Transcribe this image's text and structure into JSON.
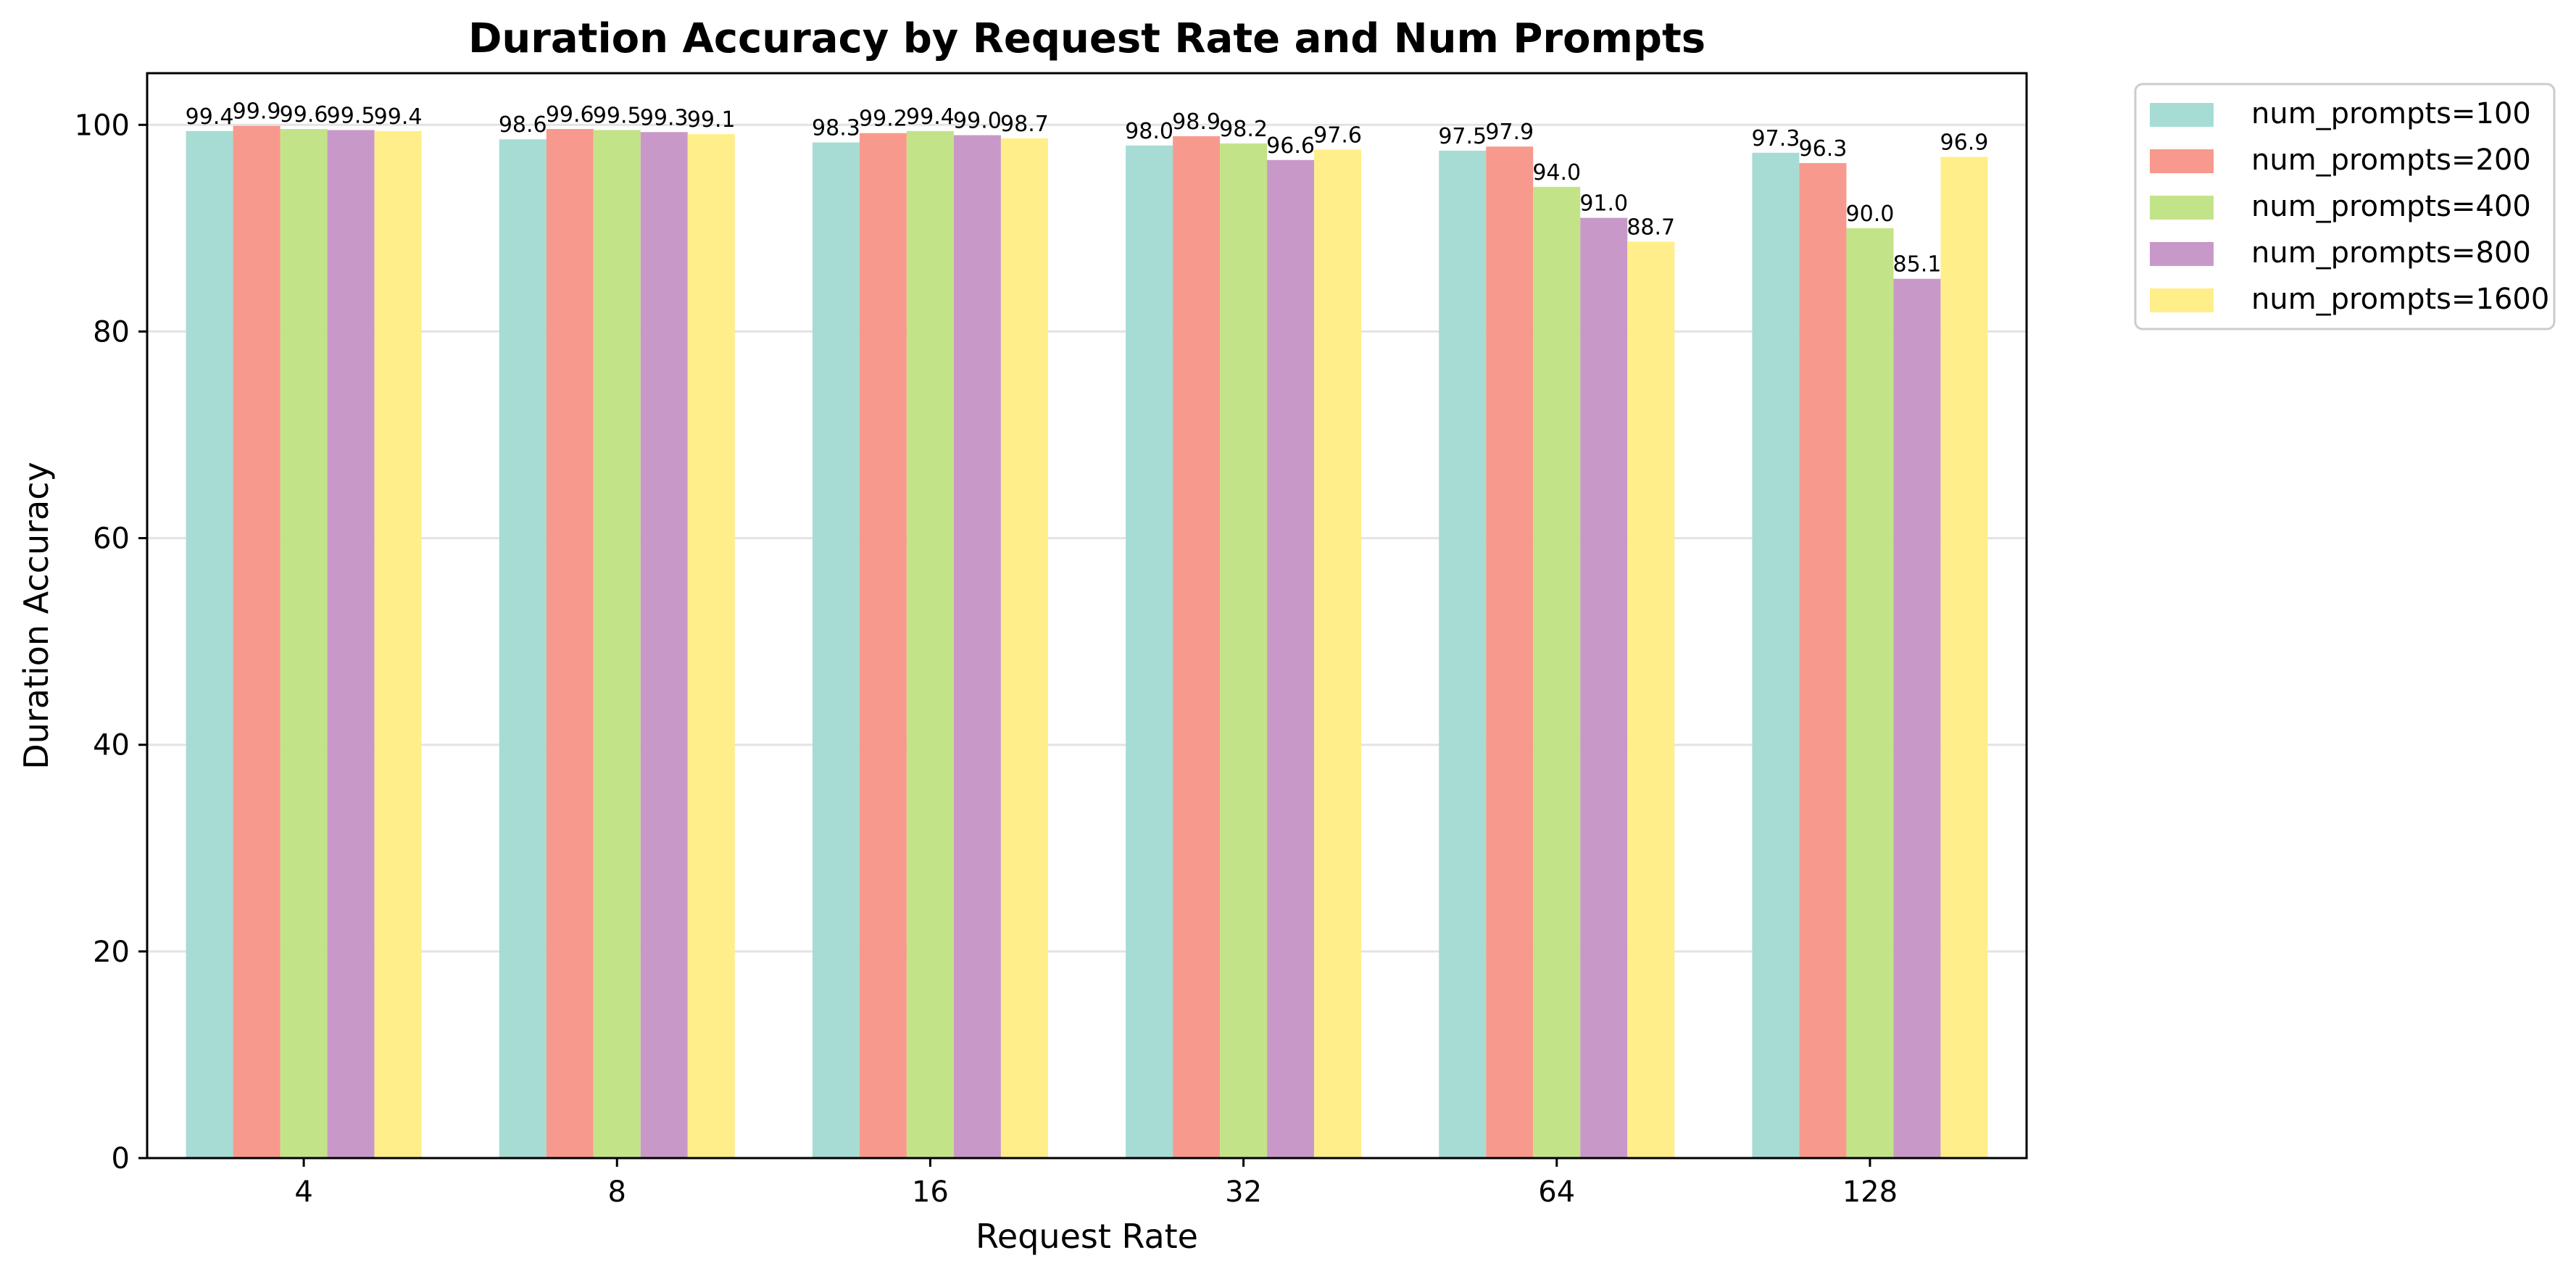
{
  "chart_data": {
    "type": "bar",
    "title": "Duration Accuracy by Request Rate and Num Prompts",
    "xlabel": "Request Rate",
    "ylabel": "Duration Accuracy",
    "categories": [
      "4",
      "8",
      "16",
      "32",
      "64",
      "128"
    ],
    "ylim": [
      0,
      105
    ],
    "yticks": [
      "0",
      "20",
      "40",
      "60",
      "80",
      "100"
    ],
    "grid": "y",
    "legend_position": "outside-top-right",
    "series": [
      {
        "name": "num_prompts=100",
        "color": "#a6dcd4",
        "values": [
          99.4,
          98.6,
          98.3,
          98.0,
          97.5,
          97.3
        ],
        "labels": [
          "99.4",
          "98.6",
          "98.3",
          "98.0",
          "97.5",
          "97.3"
        ]
      },
      {
        "name": "num_prompts=200",
        "color": "#f8998d",
        "values": [
          99.9,
          99.6,
          99.2,
          98.9,
          97.9,
          96.3
        ],
        "labels": [
          "99.9",
          "99.6",
          "99.2",
          "98.9",
          "97.9",
          "96.3"
        ]
      },
      {
        "name": "num_prompts=400",
        "color": "#c3e389",
        "values": [
          99.6,
          99.5,
          99.4,
          98.2,
          94.0,
          90.0
        ],
        "labels": [
          "99.6",
          "99.5",
          "99.4",
          "98.2",
          "94.0",
          "90.0"
        ]
      },
      {
        "name": "num_prompts=800",
        "color": "#c899c8",
        "values": [
          99.5,
          99.3,
          99.0,
          96.6,
          91.0,
          85.1
        ],
        "labels": [
          "99.5",
          "99.3",
          "99.0",
          "96.6",
          "91.0",
          "85.1"
        ]
      },
      {
        "name": "num_prompts=1600",
        "color": "#ffee8a",
        "values": [
          99.4,
          99.1,
          98.7,
          97.6,
          88.7,
          96.9
        ],
        "labels": [
          "99.4",
          "99.1",
          "98.7",
          "97.6",
          "88.7",
          "96.9"
        ]
      }
    ]
  }
}
